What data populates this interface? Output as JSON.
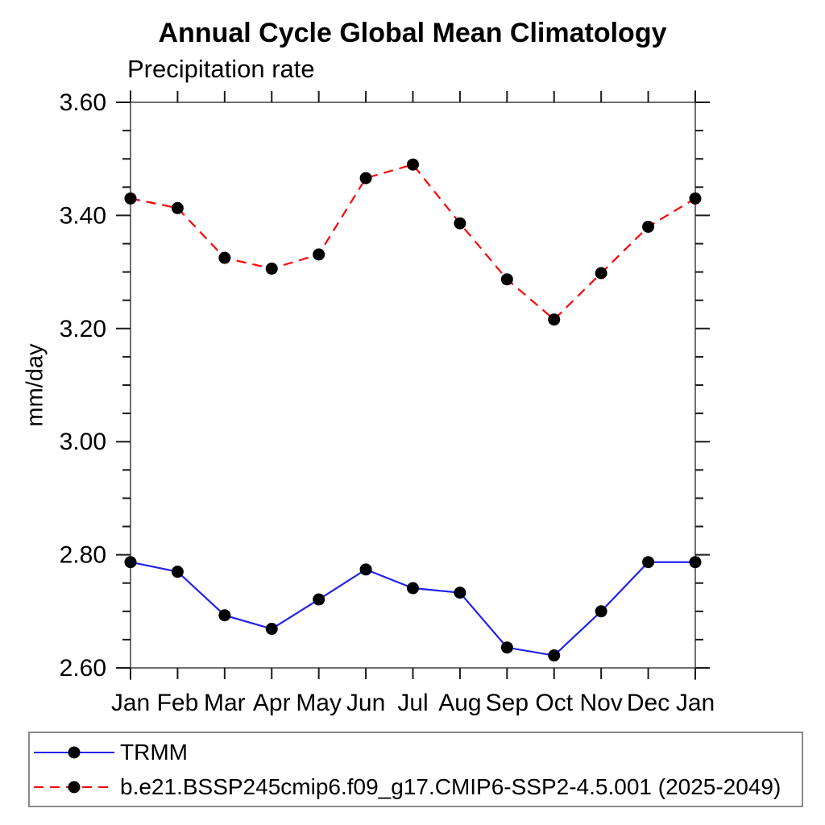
{
  "chart_data": {
    "type": "line",
    "title": "Annual Cycle Global Mean Climatology",
    "subtitle": "Precipitation rate",
    "ylabel": "mm/day",
    "categories": [
      "Jan",
      "Feb",
      "Mar",
      "Apr",
      "May",
      "Jun",
      "Jul",
      "Aug",
      "Sep",
      "Oct",
      "Nov",
      "Dec",
      "Jan"
    ],
    "ylim": [
      2.6,
      3.6
    ],
    "ytick_major_step": 0.2,
    "ytick_minor_step": 0.05,
    "ytick_label_format": "2dp",
    "grid": false,
    "legend_position": "bottom-left-box",
    "frame_color": "#707070",
    "tick_color": "#1a1a1a",
    "marker_color": "#000000",
    "series": [
      {
        "name": "TRMM",
        "color": "#2222ee",
        "style": "solid",
        "marker": "circle",
        "values": [
          2.787,
          2.77,
          2.693,
          2.669,
          2.721,
          2.774,
          2.741,
          2.733,
          2.636,
          2.622,
          2.7,
          2.787,
          2.787
        ]
      },
      {
        "name": "b.e21.BSSP245cmip6.f09_g17.CMIP6-SSP2-4.5.001 (2025-2049)",
        "color": "#ff0000",
        "style": "dashed",
        "marker": "circle",
        "values": [
          3.43,
          3.413,
          3.325,
          3.306,
          3.331,
          3.466,
          3.49,
          3.386,
          3.287,
          3.216,
          3.298,
          3.38,
          3.43
        ]
      }
    ]
  }
}
